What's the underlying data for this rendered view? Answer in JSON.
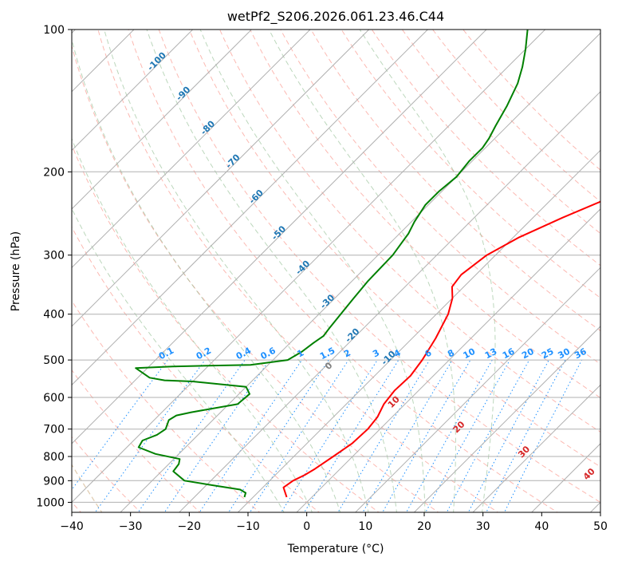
{
  "chart_data": {
    "type": "line",
    "title": "wetPf2_S206.2026.061.23.46.C44",
    "xlabel": "Temperature (°C)",
    "ylabel": "Pressure (hPa)",
    "xlim": [
      -40,
      50
    ],
    "ylim": [
      1050,
      100
    ],
    "y_scale": "log",
    "grid": true,
    "x_ticks": [
      -40,
      -30,
      -20,
      -10,
      0,
      10,
      20,
      30,
      40,
      50
    ],
    "y_ticks": [
      100,
      200,
      300,
      400,
      500,
      600,
      700,
      800,
      900,
      1000
    ],
    "x_tick_labels": [
      "−40",
      "−30",
      "−20",
      "−10",
      "0",
      "10",
      "20",
      "30",
      "40",
      "50"
    ],
    "y_tick_labels": [
      "100",
      "200",
      "300",
      "400",
      "500",
      "600",
      "700",
      "800",
      "900",
      "1000"
    ],
    "series": [
      {
        "color": "#ff0000",
        "points": [
          [
            -4.3,
            975
          ],
          [
            -6.5,
            930
          ],
          [
            -6.0,
            900
          ],
          [
            -5.0,
            875
          ],
          [
            -4.3,
            850
          ],
          [
            -3.3,
            800
          ],
          [
            -2.3,
            750
          ],
          [
            -2.1,
            700
          ],
          [
            -2.5,
            660
          ],
          [
            -3.6,
            620
          ],
          [
            -4.1,
            580
          ],
          [
            -3.9,
            540
          ],
          [
            -4.6,
            500
          ],
          [
            -6.0,
            450
          ],
          [
            -8.0,
            400
          ],
          [
            -10.0,
            370
          ],
          [
            -12.0,
            350
          ],
          [
            -12.5,
            330
          ],
          [
            -11.5,
            300
          ],
          [
            -9.0,
            275
          ],
          [
            -5.0,
            250
          ],
          [
            -1.0,
            230
          ],
          [
            1.5,
            215
          ],
          [
            4.0,
            200
          ],
          [
            7.0,
            180
          ],
          [
            11.5,
            160
          ],
          [
            15.5,
            140
          ],
          [
            20.0,
            125
          ],
          [
            24.5,
            112
          ],
          [
            27.5,
            105
          ],
          [
            28.5,
            100
          ]
        ]
      },
      {
        "color": "#008000",
        "points": [
          [
            -11.5,
            975
          ],
          [
            -12.0,
            955
          ],
          [
            -13.5,
            940
          ],
          [
            -19.0,
            920
          ],
          [
            -24.5,
            900
          ],
          [
            -28.0,
            860
          ],
          [
            -28.3,
            830
          ],
          [
            -29.0,
            810
          ],
          [
            -34.0,
            790
          ],
          [
            -38.0,
            765
          ],
          [
            -38.5,
            740
          ],
          [
            -37.0,
            720
          ],
          [
            -36.5,
            700
          ],
          [
            -37.5,
            670
          ],
          [
            -37.0,
            655
          ],
          [
            -35.0,
            645
          ],
          [
            -28.5,
            620
          ],
          [
            -28.2,
            590
          ],
          [
            -30.0,
            570
          ],
          [
            -40.0,
            555
          ],
          [
            -45.0,
            552
          ],
          [
            -48.0,
            545
          ],
          [
            -52.0,
            520
          ],
          [
            -46.0,
            516
          ],
          [
            -33.0,
            512
          ],
          [
            -27.5,
            500
          ],
          [
            -26.5,
            480
          ],
          [
            -26.0,
            460
          ],
          [
            -25.5,
            445
          ],
          [
            -25.8,
            430
          ],
          [
            -26.3,
            400
          ],
          [
            -26.8,
            370
          ],
          [
            -27.3,
            340
          ],
          [
            -27.5,
            300
          ],
          [
            -28.5,
            270
          ],
          [
            -29.5,
            255
          ],
          [
            -30.5,
            235
          ],
          [
            -30.5,
            220
          ],
          [
            -30.0,
            205
          ],
          [
            -30.5,
            190
          ],
          [
            -30.5,
            178
          ],
          [
            -31.0,
            170
          ],
          [
            -32.0,
            160
          ],
          [
            -33.5,
            145
          ],
          [
            -35.5,
            130
          ],
          [
            -37.5,
            120
          ],
          [
            -40.0,
            110
          ],
          [
            -43.0,
            100
          ]
        ]
      }
    ],
    "skew_factor": 35,
    "isotherms": [
      -140,
      -130,
      -120,
      -110,
      -100,
      -90,
      -80,
      -70,
      -60,
      -50,
      -40,
      -30,
      -20,
      -10,
      0,
      10,
      20,
      30,
      40,
      50
    ],
    "dry_adiabats_C": [
      -60,
      -50,
      -40,
      -30,
      -20,
      -10,
      0,
      10,
      20,
      30,
      40,
      50,
      60,
      70,
      80,
      90,
      100,
      110,
      120,
      130,
      140,
      150
    ],
    "moist_adiabats_C": [
      -5,
      0,
      5,
      10,
      15,
      20,
      25,
      30
    ],
    "mixing_ratios": [
      0.1,
      0.2,
      0.4,
      0.6,
      1,
      1.5,
      2,
      3,
      4,
      6,
      8,
      10,
      13,
      16,
      20,
      25,
      30,
      36
    ],
    "isotherm_labels": [
      {
        "text": "-100",
        "t": -100,
        "p": 118
      },
      {
        "text": "-90",
        "t": -90,
        "p": 138
      },
      {
        "text": "-80",
        "t": -80,
        "p": 163
      },
      {
        "text": "-70",
        "t": -70,
        "p": 192
      },
      {
        "text": "-60",
        "t": -60,
        "p": 228
      },
      {
        "text": "-50",
        "t": -50,
        "p": 272
      },
      {
        "text": "-40",
        "t": -40,
        "p": 322
      },
      {
        "text": "-30",
        "t": -30,
        "p": 380
      },
      {
        "text": "-20",
        "t": -20,
        "p": 448
      },
      {
        "text": "-10",
        "t": -10,
        "p": 500
      }
    ],
    "mixing_ratio_labels": [
      "0.1",
      "0.2",
      "0.4",
      "0.6",
      "1",
      "1.5",
      "2",
      "3",
      "4",
      "6",
      "8",
      "10",
      "13",
      "16",
      "20",
      "25",
      "30",
      "36"
    ],
    "dry_adiabat_labels": [
      {
        "text": "0",
        "t": 0,
        "p": 520
      },
      {
        "text": "10",
        "t": 10,
        "p": 620
      },
      {
        "text": "20",
        "t": 20,
        "p": 700
      },
      {
        "text": "30",
        "t": 30,
        "p": 790
      },
      {
        "text": "40",
        "t": 40,
        "p": 880
      }
    ],
    "colors": {
      "temperature": "#ff0000",
      "dewpoint": "#008000",
      "isotherm_label": "#1f77b4",
      "mixing_ratio": "#1e90ff",
      "dry_adiabat": "#fa8072",
      "dry_adiabat_label": "#d62728",
      "moist_adiabat": "#8fbc8f",
      "lcl_adiabat": "#d2b48c",
      "zero_label": "#808080",
      "grid": "#b0b0b0"
    }
  }
}
